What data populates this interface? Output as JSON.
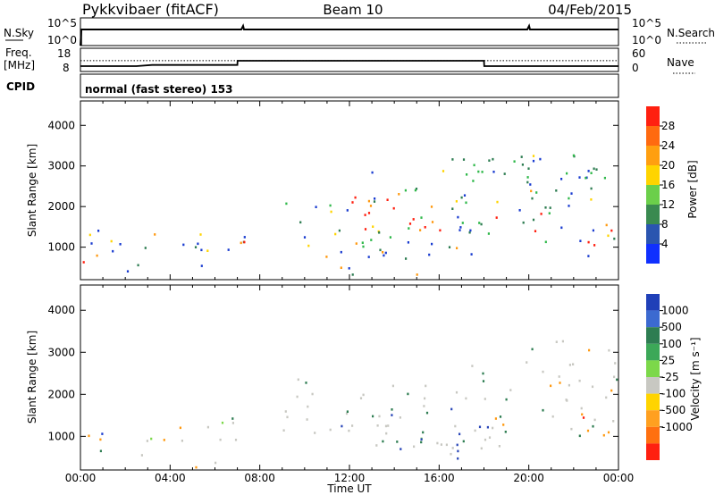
{
  "header": {
    "station": "Pykkvibaer (fitACF)",
    "beam": "Beam 10",
    "date": "04/Feb/2015"
  },
  "strip_labels": {
    "nsky": "N.Sky",
    "freq_line1": "Freq.",
    "freq_line2": "[MHz]",
    "cpid": "CPID",
    "nsearch": "N.Search",
    "nave": "Nave"
  },
  "cpid_text": "normal (fast stereo) 153",
  "colors": {
    "red": "#ff1f0f",
    "orange": "#ff9910",
    "yellow": "#ffd400",
    "green": "#2fb84a",
    "dkgreen": "#2e7d52",
    "blue": "#1a3cd0",
    "grey": "#c8c8c2",
    "ltgreen": "#7cd84a",
    "dkblue": "#2a47b8"
  },
  "chart_data": [
    {
      "type": "line",
      "title": "N.Sky / N.Search",
      "left_ticks": [
        "10^5",
        "10^0"
      ],
      "right_ticks": [
        "10^5",
        "10^0"
      ],
      "xlabel": "",
      "ylabel": ""
    },
    {
      "type": "line",
      "title": "Freq. / Nave",
      "left_ticks": [
        "18",
        "8"
      ],
      "right_ticks": [
        "60",
        "0"
      ],
      "series": [
        {
          "name": "Freq. [MHz]",
          "x": [
            0,
            2.5,
            3.2,
            7.0,
            7.01,
            18.0,
            18.01,
            24
          ],
          "values": [
            10.3,
            10.3,
            10.8,
            10.8,
            12.6,
            12.6,
            10.3,
            10.3
          ]
        },
        {
          "name": "Nave",
          "x": [
            0,
            24
          ],
          "values": [
            28,
            28
          ]
        }
      ]
    },
    {
      "type": "heatmap",
      "xlabel": "",
      "ylabel": "Slant Range [km]",
      "xlim": [
        0,
        24
      ],
      "ylim": [
        200,
        4600
      ],
      "yticks": [
        1000,
        2000,
        3000,
        4000
      ],
      "colorbar": {
        "label": "Power [dB]",
        "ticks": [
          "4",
          "8",
          "12",
          "16",
          "20",
          "24",
          "28"
        ]
      }
    },
    {
      "type": "heatmap",
      "xlabel": "Time UT",
      "ylabel": "Slant Range [km]",
      "xlim": [
        0,
        24
      ],
      "ylim": [
        200,
        4600
      ],
      "xticks": [
        "00:00",
        "04:00",
        "08:00",
        "12:00",
        "16:00",
        "20:00",
        "00:00"
      ],
      "yticks": [
        1000,
        2000,
        3000,
        4000
      ],
      "colorbar": {
        "label": "Velocity [m s⁻¹]",
        "ticks": [
          "1000",
          "500",
          "100",
          "25",
          "-25",
          "-100",
          "-500",
          "-1000"
        ]
      }
    }
  ]
}
